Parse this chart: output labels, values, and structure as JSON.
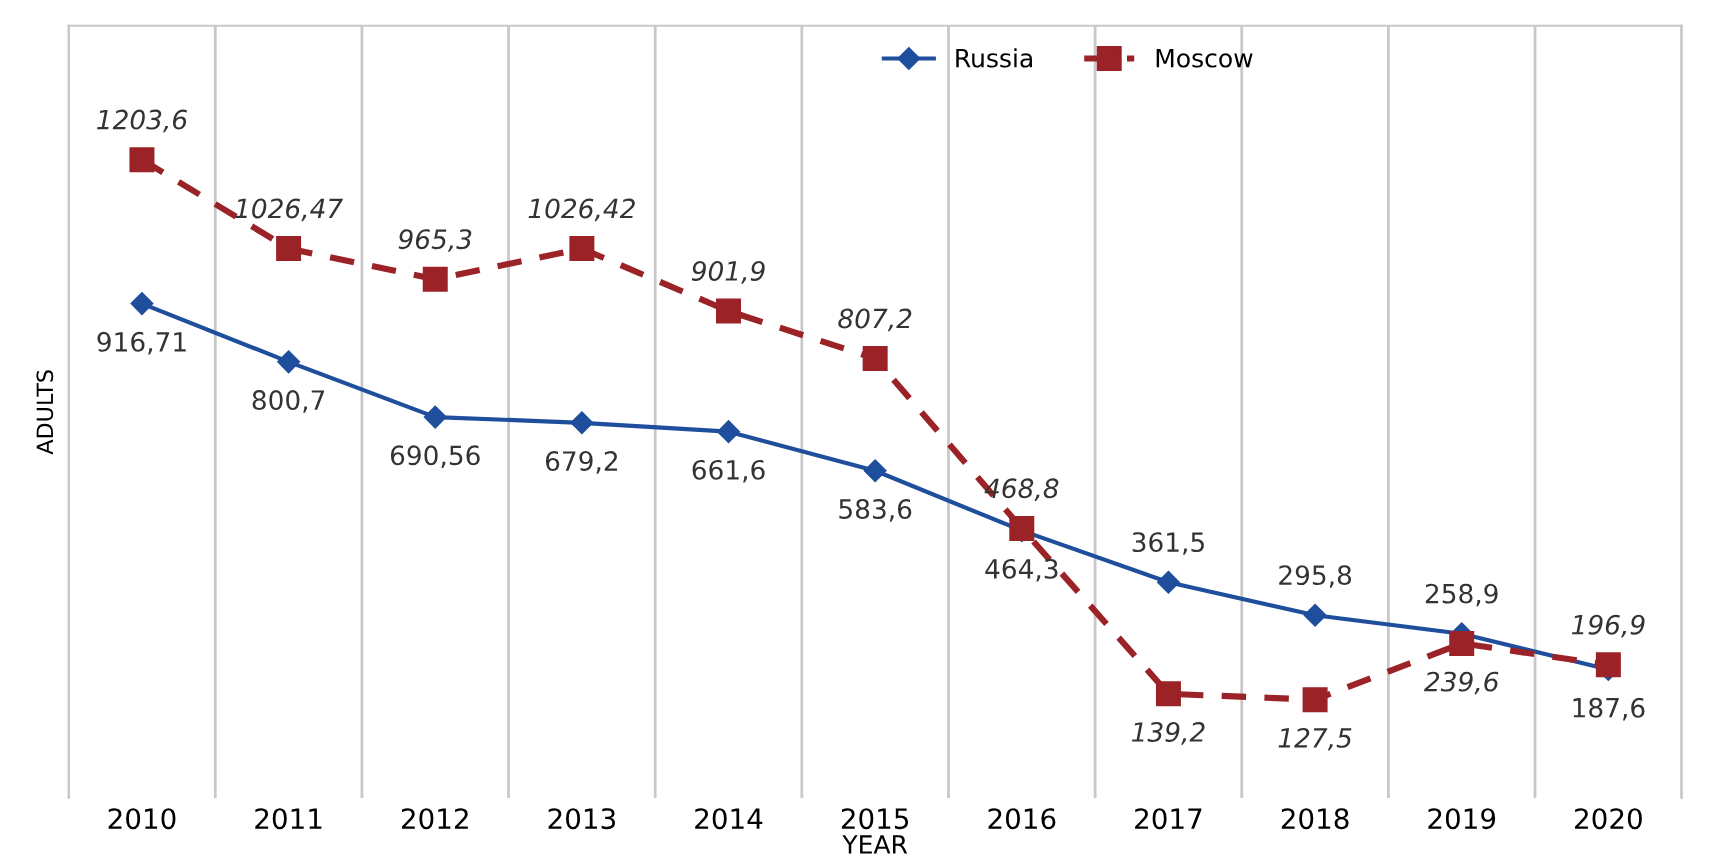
{
  "chart_data": {
    "type": "line",
    "xlabel": "YEAR",
    "ylabel": "ADULTS",
    "categories": [
      "2010",
      "2011",
      "2012",
      "2013",
      "2014",
      "2015",
      "2016",
      "2017",
      "2018",
      "2019",
      "2020"
    ],
    "series": [
      {
        "name": "Russia",
        "color": "#1f4e9c",
        "marker": "diamond",
        "line_style": "solid",
        "values": [
          916.71,
          800.7,
          690.56,
          679.2,
          661.6,
          583.6,
          464.3,
          361.5,
          295.8,
          258.9,
          187.6
        ],
        "value_labels": [
          "916,71",
          "800,7",
          "690,56",
          "679,2",
          "661,6",
          "583,6",
          "464,3",
          "361,5",
          "295,8",
          "258,9",
          "187,6"
        ]
      },
      {
        "name": "Moscow",
        "color": "#9b2226",
        "marker": "square",
        "line_style": "dashed",
        "values": [
          1203.6,
          1026.47,
          965.3,
          1026.42,
          901.9,
          807.2,
          468.8,
          139.2,
          127.5,
          239.6,
          196.9
        ],
        "value_labels": [
          "1203,6",
          "1026,47",
          "965,3",
          "1026,42",
          "901,9",
          "807,2",
          "468,8",
          "139,2",
          "127,5",
          "239,6",
          "196,9"
        ]
      }
    ],
    "grid": "x",
    "legend": "top",
    "tick_labels": "x"
  }
}
